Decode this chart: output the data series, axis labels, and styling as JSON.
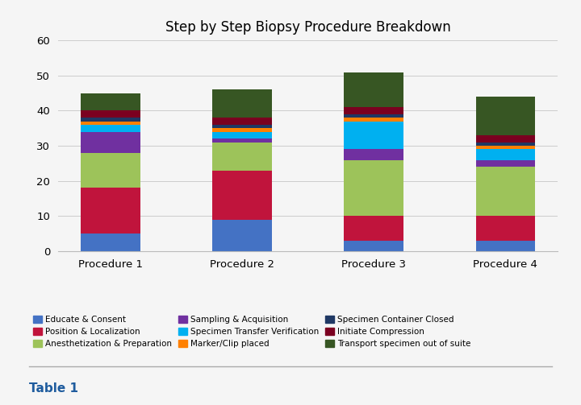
{
  "title": "Step by Step Biopsy Procedure Breakdown",
  "categories": [
    "Procedure 1",
    "Procedure 2",
    "Procedure 3",
    "Procedure 4"
  ],
  "segments": [
    {
      "label": "Educate & Consent",
      "color": "#4472C4",
      "values": [
        5,
        9,
        3,
        3
      ]
    },
    {
      "label": "Position & Localization",
      "color": "#C0143C",
      "values": [
        13,
        14,
        7,
        7
      ]
    },
    {
      "label": "Anesthetization & Preparation",
      "color": "#9DC35A",
      "values": [
        10,
        8,
        16,
        14
      ]
    },
    {
      "label": "Sampling & Acquisition",
      "color": "#7030A0",
      "values": [
        6,
        1,
        3,
        2
      ]
    },
    {
      "label": "Specimen Transfer Verification",
      "color": "#00B0F0",
      "values": [
        2,
        2,
        8,
        3
      ]
    },
    {
      "label": "Marker/Clip placed",
      "color": "#FF8000",
      "values": [
        1,
        1,
        1,
        1
      ]
    },
    {
      "label": "Specimen Container Closed",
      "color": "#1F3864",
      "values": [
        1,
        1,
        1,
        1
      ]
    },
    {
      "label": "Initiate Compression",
      "color": "#7B0020",
      "values": [
        2,
        2,
        2,
        2
      ]
    },
    {
      "label": "Transport specimen out of suite",
      "color": "#375623",
      "values": [
        5,
        8,
        10,
        11
      ]
    }
  ],
  "legend_order": [
    [
      "Educate & Consent",
      "Position & Localization",
      "Anesthetization & Preparation"
    ],
    [
      "Sampling & Acquisition",
      "Specimen Transfer Verification",
      "Marker/Clip placed"
    ],
    [
      "Specimen Container Closed",
      "Initiate Compression",
      "Transport specimen out of suite"
    ]
  ],
  "ylim": [
    0,
    60
  ],
  "yticks": [
    0,
    10,
    20,
    30,
    40,
    50,
    60
  ],
  "background_color": "#f5f5f5",
  "table_label": "Table 1",
  "bar_width": 0.45
}
